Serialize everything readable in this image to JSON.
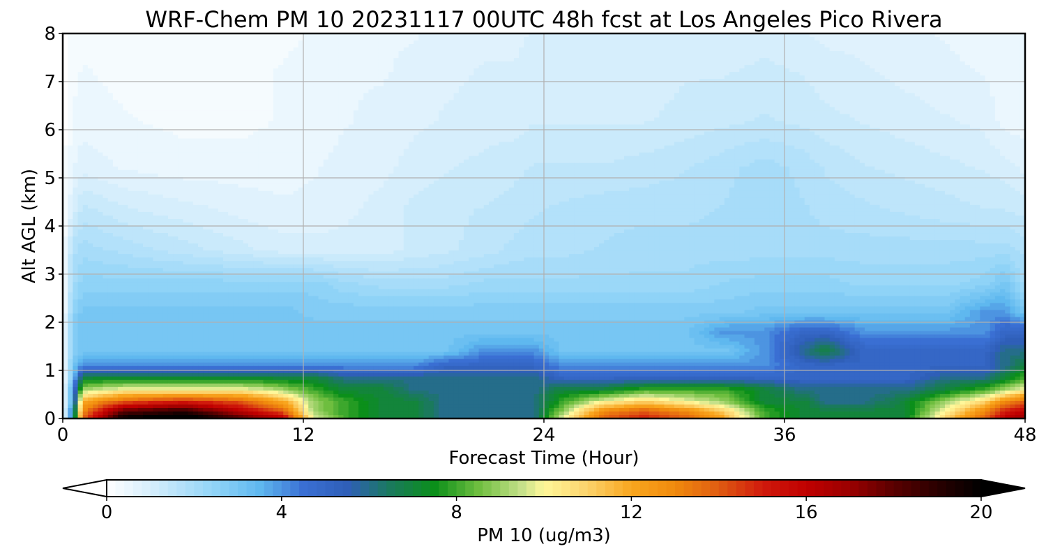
{
  "chart_data": {
    "type": "heatmap",
    "title": "WRF-Chem PM 10  20231117 00UTC 48h fcst at Los Angeles Pico Rivera",
    "xlabel": "Forecast Time (Hour)",
    "ylabel": "Alt AGL (km)",
    "xlim": [
      0,
      48
    ],
    "ylim": [
      0,
      8
    ],
    "x_ticks": [
      0,
      12,
      24,
      36,
      48
    ],
    "y_ticks": [
      0,
      1,
      2,
      3,
      4,
      5,
      6,
      7,
      8
    ],
    "grid": true,
    "x": [
      0,
      0.5,
      1,
      3,
      6,
      9,
      11,
      12.5,
      14,
      16,
      17.5,
      19,
      21,
      22.5,
      23.5,
      25,
      27,
      29,
      31,
      33,
      35,
      37,
      38,
      40,
      42,
      44,
      46,
      47,
      48
    ],
    "y": [
      0,
      0.15,
      0.35,
      0.6,
      0.85,
      1.1,
      1.4,
      1.8,
      2.2,
      2.8,
      3.5,
      4.3,
      5.2,
      6.2,
      7.2,
      8
    ],
    "z": [
      [
        0,
        5,
        14,
        20,
        21,
        18,
        16,
        10,
        8,
        7,
        7,
        6,
        6,
        6,
        6,
        10,
        14,
        15,
        14,
        12,
        8,
        7,
        7,
        7,
        7,
        11,
        14,
        16,
        17
      ],
      [
        0,
        5,
        13,
        18,
        19,
        16,
        14,
        9,
        8,
        7,
        7,
        6,
        6,
        6,
        6,
        9,
        13,
        14,
        13,
        11,
        8,
        7,
        7,
        7,
        7,
        10,
        13,
        15,
        16
      ],
      [
        0,
        4,
        12,
        14,
        15,
        14,
        12,
        9,
        8,
        7,
        7,
        6,
        6,
        6,
        6,
        8,
        10,
        11,
        10,
        9,
        7,
        7,
        6,
        6,
        7,
        9,
        11,
        13,
        14
      ],
      [
        0,
        4,
        9,
        10,
        10,
        10,
        9,
        8,
        7,
        7,
        6,
        6,
        6,
        6,
        6,
        7,
        7,
        8,
        8,
        8,
        7,
        6,
        6,
        6,
        6,
        7,
        8,
        9,
        10
      ],
      [
        0,
        3,
        7,
        7,
        7,
        7,
        7,
        7,
        6,
        6,
        6,
        6,
        6,
        6,
        6,
        5,
        5,
        5,
        5,
        5,
        5,
        5,
        5,
        5,
        5,
        6,
        6,
        7,
        8
      ],
      [
        0,
        3,
        4,
        4,
        4,
        4,
        4,
        4,
        4,
        4,
        4,
        5,
        5,
        5,
        5,
        4,
        4,
        4,
        4,
        4,
        4,
        5,
        5,
        5,
        5,
        5,
        5,
        6,
        7
      ],
      [
        0,
        2.5,
        3,
        3,
        3,
        3,
        3,
        3,
        3,
        3,
        3,
        3,
        4,
        4,
        4,
        3,
        3,
        3,
        3,
        3,
        4,
        6,
        7,
        5,
        5,
        5,
        5,
        6,
        6
      ],
      [
        0,
        2.5,
        3,
        3,
        3,
        3,
        3,
        3,
        3,
        3,
        3,
        3,
        3,
        3,
        3,
        3,
        3,
        3,
        3,
        4,
        4,
        5,
        5,
        4,
        4,
        4,
        4,
        5,
        5
      ],
      [
        0,
        2.5,
        3,
        3,
        3,
        3,
        3,
        2.8,
        2.8,
        2.8,
        2.8,
        2.8,
        2.8,
        2.8,
        2.8,
        2.8,
        2.8,
        2.8,
        2.8,
        2.8,
        3,
        3,
        3,
        3,
        3,
        3,
        4,
        4,
        3
      ],
      [
        0,
        2,
        2.5,
        2.5,
        2.5,
        2.5,
        2.5,
        2.5,
        2.2,
        2,
        2,
        2,
        2.2,
        2.2,
        2.2,
        2.2,
        2.2,
        2.2,
        2.2,
        2.4,
        2.5,
        2.5,
        2.5,
        2.3,
        2.3,
        2.3,
        2.5,
        3,
        2
      ],
      [
        0,
        1.8,
        2,
        1.8,
        1.5,
        1.2,
        1,
        1,
        1,
        1,
        1.2,
        1.3,
        1.5,
        1.7,
        1.8,
        1.8,
        1.9,
        2,
        2,
        2,
        2,
        2,
        2,
        2,
        2,
        2,
        2,
        2,
        1.8
      ],
      [
        0,
        1,
        1.5,
        1.2,
        1,
        0.8,
        0.7,
        0.7,
        0.8,
        1,
        1.2,
        1.3,
        1.4,
        1.5,
        1.6,
        1.7,
        1.8,
        1.8,
        1.8,
        1.9,
        2,
        1.9,
        1.8,
        1.7,
        1.6,
        1.5,
        1.4,
        1.4,
        1.3
      ],
      [
        0,
        0.6,
        0.8,
        0.6,
        0.5,
        0.5,
        0.5,
        0.6,
        0.7,
        0.8,
        1,
        1.1,
        1.2,
        1.3,
        1.4,
        1.4,
        1.4,
        1.5,
        1.6,
        1.8,
        2,
        1.8,
        1.6,
        1.4,
        1.3,
        1.2,
        1.1,
        1,
        0.8
      ],
      [
        0,
        0.4,
        0.5,
        0.4,
        0.3,
        0.3,
        0.4,
        0.5,
        0.6,
        0.7,
        0.8,
        0.9,
        1,
        1,
        1.1,
        1.1,
        1.1,
        1.1,
        1.2,
        1.3,
        1.4,
        1.3,
        1.2,
        1.1,
        1,
        0.9,
        0.8,
        0.5,
        0.5
      ],
      [
        0,
        0.3,
        0.4,
        0.3,
        0.3,
        0.3,
        0.4,
        0.5,
        0.6,
        0.6,
        0.7,
        0.8,
        0.9,
        0.9,
        1,
        1,
        1,
        1,
        1.1,
        1.1,
        1.2,
        1.1,
        1,
        0.9,
        0.8,
        0.7,
        0.6,
        0.5,
        0.4
      ],
      [
        0,
        0.3,
        0.3,
        0.3,
        0.3,
        0.3,
        0.3,
        0.4,
        0.5,
        0.6,
        0.6,
        0.7,
        0.8,
        0.8,
        0.9,
        0.9,
        0.9,
        0.9,
        0.9,
        0.9,
        1,
        0.9,
        0.8,
        0.8,
        0.7,
        0.6,
        0.5,
        0.5,
        0.4
      ]
    ],
    "colorbar": {
      "label": "PM 10  (ug/m3)",
      "min": 0,
      "max": 20,
      "ticks": [
        0,
        4,
        8,
        12,
        16,
        20
      ],
      "extend": "both",
      "color_stops": [
        [
          0,
          "#ffffff"
        ],
        [
          1,
          "#d6eefc"
        ],
        [
          2.5,
          "#8fd3f7"
        ],
        [
          3.5,
          "#5fb8ef"
        ],
        [
          4.5,
          "#3a6fd3"
        ],
        [
          5.5,
          "#2f5fb8"
        ],
        [
          6.5,
          "#1a7a5c"
        ],
        [
          7.5,
          "#0b8f1a"
        ],
        [
          8.5,
          "#6ebe3f"
        ],
        [
          9.5,
          "#c6e18a"
        ],
        [
          10,
          "#fff79a"
        ],
        [
          11,
          "#fcd26b"
        ],
        [
          12,
          "#f9a61e"
        ],
        [
          13,
          "#f08a0d"
        ],
        [
          14,
          "#e05c12"
        ],
        [
          15,
          "#d01a0c"
        ],
        [
          16,
          "#c00000"
        ],
        [
          17,
          "#9a0000"
        ],
        [
          18,
          "#5a0000"
        ],
        [
          19,
          "#2a0000"
        ],
        [
          20,
          "#000000"
        ]
      ]
    }
  }
}
